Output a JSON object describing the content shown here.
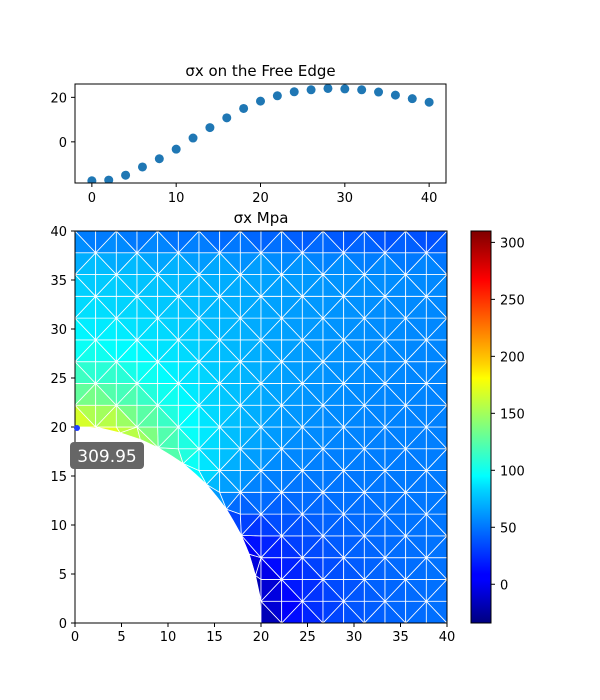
{
  "colors": {
    "scatter_point": "#1f77b4",
    "mesh_line": "#ffffff",
    "badge_bg": "#666666",
    "badge_text": "#ffffff",
    "colormap": "jet"
  },
  "chart_data": [
    {
      "type": "scatter",
      "title": "σx on the Free Edge",
      "xlabel": "",
      "ylabel": "",
      "xlim": [
        -2,
        42
      ],
      "ylim": [
        -18.5,
        26
      ],
      "xticks": [
        "0",
        "10",
        "20",
        "30",
        "40"
      ],
      "yticks": [
        "0",
        "20"
      ],
      "x": [
        0,
        2,
        4,
        6,
        8,
        10,
        12,
        14,
        16,
        18,
        20,
        22,
        24,
        26,
        28,
        30,
        32,
        34,
        36,
        38,
        40
      ],
      "y": [
        -17.5,
        -17.2,
        -15.0,
        -11.3,
        -7.6,
        -3.3,
        1.7,
        6.4,
        10.8,
        15.0,
        18.3,
        20.7,
        22.5,
        23.4,
        24.0,
        23.8,
        23.4,
        22.4,
        21.0,
        19.4,
        17.8
      ]
    },
    {
      "type": "heatmap",
      "title": "σx Mpa",
      "xlabel": "",
      "ylabel": "",
      "xlim": [
        0,
        40
      ],
      "ylim": [
        0,
        40
      ],
      "xticks": [
        "0",
        "5",
        "10",
        "15",
        "20",
        "25",
        "30",
        "35",
        "40"
      ],
      "yticks": [
        "0",
        "5",
        "10",
        "15",
        "20",
        "25",
        "30",
        "35",
        "40"
      ],
      "hole_radius": 20,
      "colorbar": {
        "range": [
          -34,
          310
        ],
        "ticks": [
          "0",
          "50",
          "100",
          "150",
          "200",
          "250",
          "300"
        ]
      },
      "annotation": {
        "text": "309.95",
        "point": [
          0,
          20
        ]
      }
    }
  ]
}
